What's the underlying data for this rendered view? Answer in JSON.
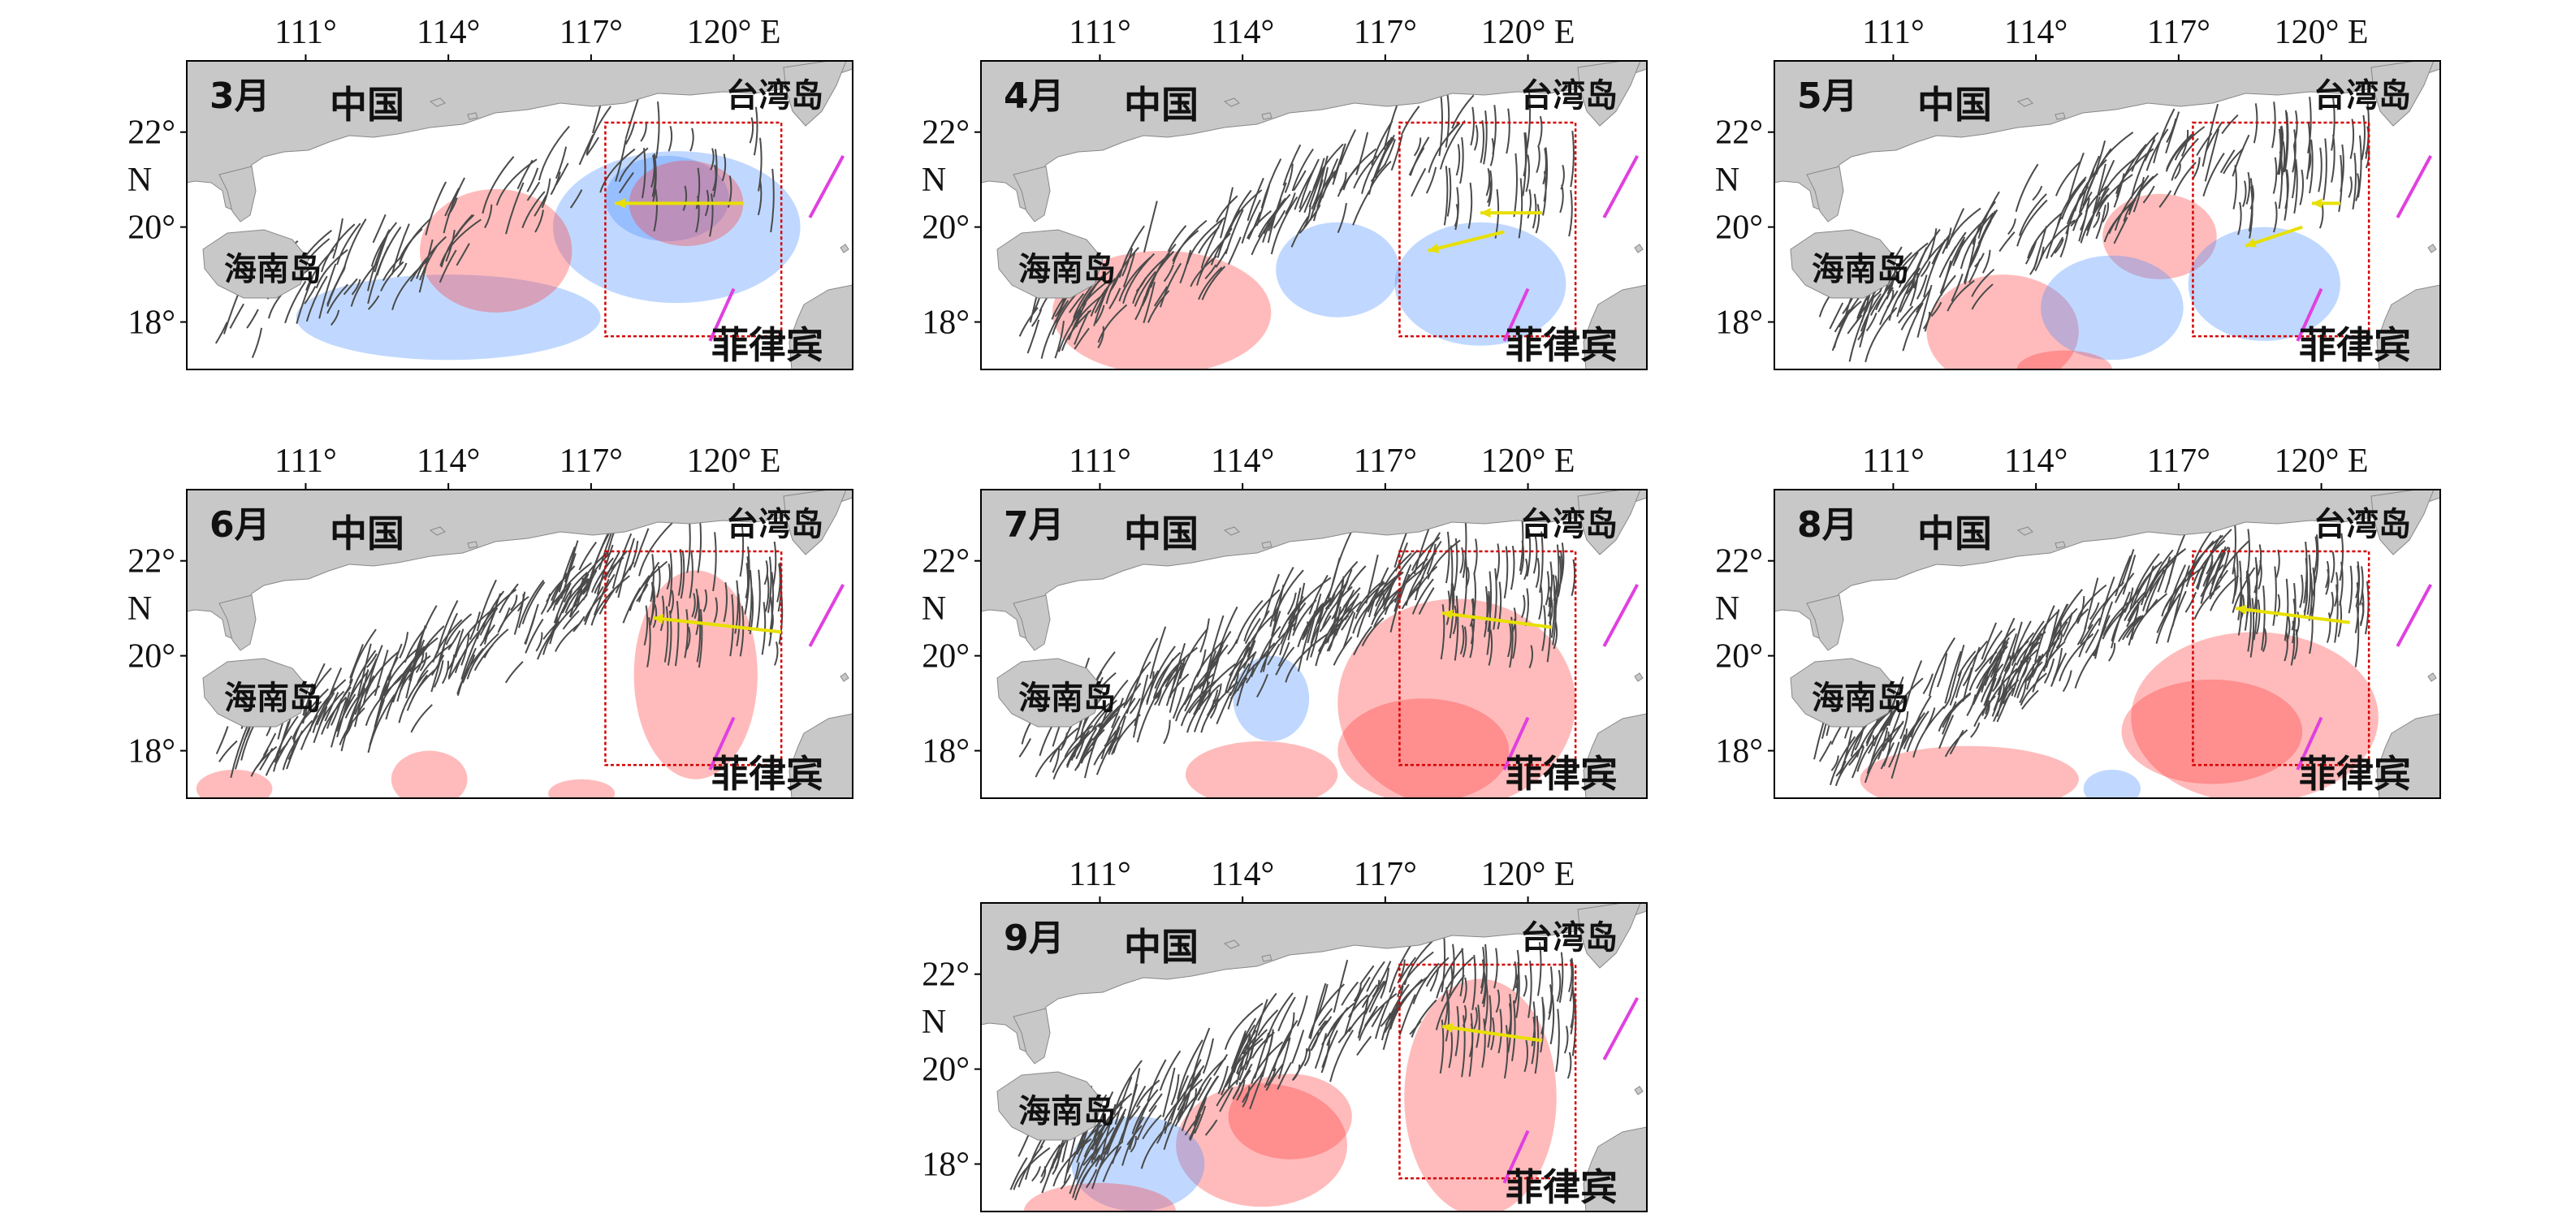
{
  "lon_ticks": [
    "111°",
    "114°",
    "117°",
    "120° E"
  ],
  "lat_ticks": [
    "22°",
    "20°",
    "18°"
  ],
  "lat_unit": "N",
  "place_names": {
    "china": "中国",
    "taiwan": "台湾岛",
    "hainan": "海南岛",
    "philippines": "菲律宾"
  },
  "colors": {
    "land": "#c8c8c8",
    "waves": "#4a4a4a",
    "positive_anomaly": "#ff3b3b",
    "negative_anomaly": "#4a90ff",
    "box": "#d40000",
    "arrow": "#e8e000",
    "magenta_line": "#e040e0"
  },
  "panels": [
    {
      "month": "3月",
      "wave_density": 0.25,
      "wave_east": true,
      "anomalies": [
        {
          "sign": "neg",
          "lon": 114.0,
          "lat": 18.1,
          "rx": 3.2,
          "ry": 0.9
        },
        {
          "sign": "neg",
          "lon": 118.8,
          "lat": 20.0,
          "rx": 2.6,
          "ry": 1.6
        },
        {
          "sign": "neg",
          "lon": 118.6,
          "lat": 20.6,
          "rx": 1.3,
          "ry": 0.9
        },
        {
          "sign": "pos",
          "lon": 115.0,
          "lat": 19.5,
          "rx": 1.6,
          "ry": 1.3
        },
        {
          "sign": "pos",
          "lon": 119.0,
          "lat": 20.5,
          "rx": 1.2,
          "ry": 0.9
        }
      ],
      "arrows": [
        {
          "from": [
            120.2,
            20.5
          ],
          "to": [
            117.5,
            20.5
          ]
        }
      ]
    },
    {
      "month": "4月",
      "wave_density": 0.55,
      "wave_east": true,
      "anomalies": [
        {
          "sign": "pos",
          "lon": 112.3,
          "lat": 18.2,
          "rx": 2.3,
          "ry": 1.3
        },
        {
          "sign": "neg",
          "lon": 116.0,
          "lat": 19.1,
          "rx": 1.3,
          "ry": 1.0
        },
        {
          "sign": "neg",
          "lon": 119.0,
          "lat": 18.8,
          "rx": 1.8,
          "ry": 1.3
        }
      ],
      "arrows": [
        {
          "from": [
            120.3,
            20.3
          ],
          "to": [
            119.0,
            20.3
          ]
        },
        {
          "from": [
            119.5,
            19.9
          ],
          "to": [
            117.9,
            19.5
          ]
        }
      ]
    },
    {
      "month": "5月",
      "wave_density": 0.7,
      "wave_east": true,
      "anomalies": [
        {
          "sign": "pos",
          "lon": 113.3,
          "lat": 17.8,
          "rx": 1.6,
          "ry": 1.2
        },
        {
          "sign": "pos",
          "lon": 116.6,
          "lat": 19.8,
          "rx": 1.2,
          "ry": 0.9
        },
        {
          "sign": "neg",
          "lon": 115.6,
          "lat": 18.3,
          "rx": 1.5,
          "ry": 1.1
        },
        {
          "sign": "neg",
          "lon": 118.8,
          "lat": 18.8,
          "rx": 1.6,
          "ry": 1.2
        },
        {
          "sign": "pos",
          "lon": 114.6,
          "lat": 17.0,
          "rx": 1.0,
          "ry": 0.4
        }
      ],
      "arrows": [
        {
          "from": [
            120.4,
            20.5
          ],
          "to": [
            119.8,
            20.5
          ]
        },
        {
          "from": [
            119.6,
            20.0
          ],
          "to": [
            118.4,
            19.6
          ]
        }
      ]
    },
    {
      "month": "6月",
      "wave_density": 0.85,
      "wave_east": true,
      "anomalies": [
        {
          "sign": "pos",
          "lon": 119.2,
          "lat": 19.6,
          "rx": 1.3,
          "ry": 2.2
        },
        {
          "sign": "pos",
          "lon": 113.6,
          "lat": 17.4,
          "rx": 0.8,
          "ry": 0.6
        },
        {
          "sign": "pos",
          "lon": 109.5,
          "lat": 17.2,
          "rx": 0.8,
          "ry": 0.4
        },
        {
          "sign": "pos",
          "lon": 116.8,
          "lat": 17.1,
          "rx": 0.7,
          "ry": 0.3
        }
      ],
      "arrows": [
        {
          "from": [
            121.0,
            20.5
          ],
          "to": [
            118.3,
            20.8
          ]
        }
      ]
    },
    {
      "month": "7月",
      "wave_density": 1.0,
      "wave_east": true,
      "anomalies": [
        {
          "sign": "pos",
          "lon": 118.5,
          "lat": 19.0,
          "rx": 2.5,
          "ry": 2.2
        },
        {
          "sign": "pos",
          "lon": 117.8,
          "lat": 18.0,
          "rx": 1.8,
          "ry": 1.1
        },
        {
          "sign": "neg",
          "lon": 114.6,
          "lat": 19.1,
          "rx": 0.8,
          "ry": 0.9
        },
        {
          "sign": "pos",
          "lon": 114.4,
          "lat": 17.5,
          "rx": 1.6,
          "ry": 0.7
        }
      ],
      "arrows": [
        {
          "from": [
            120.5,
            20.6
          ],
          "to": [
            118.2,
            20.9
          ]
        }
      ]
    },
    {
      "month": "8月",
      "wave_density": 1.0,
      "wave_east": true,
      "anomalies": [
        {
          "sign": "pos",
          "lon": 118.6,
          "lat": 18.7,
          "rx": 2.6,
          "ry": 1.8
        },
        {
          "sign": "pos",
          "lon": 117.7,
          "lat": 18.4,
          "rx": 1.9,
          "ry": 1.1
        },
        {
          "sign": "pos",
          "lon": 112.6,
          "lat": 17.4,
          "rx": 2.3,
          "ry": 0.7
        },
        {
          "sign": "neg",
          "lon": 115.6,
          "lat": 17.2,
          "rx": 0.6,
          "ry": 0.4
        }
      ],
      "arrows": [
        {
          "from": [
            120.6,
            20.7
          ],
          "to": [
            118.2,
            21.0
          ]
        }
      ]
    },
    {
      "month": "9月",
      "wave_density": 0.95,
      "wave_east": true,
      "anomalies": [
        {
          "sign": "pos",
          "lon": 119.0,
          "lat": 19.4,
          "rx": 1.6,
          "ry": 2.5
        },
        {
          "sign": "pos",
          "lon": 114.4,
          "lat": 18.4,
          "rx": 1.8,
          "ry": 1.3
        },
        {
          "sign": "pos",
          "lon": 115.0,
          "lat": 19.0,
          "rx": 1.3,
          "ry": 0.9
        },
        {
          "sign": "neg",
          "lon": 111.8,
          "lat": 18.0,
          "rx": 1.4,
          "ry": 1.0
        },
        {
          "sign": "pos",
          "lon": 111.0,
          "lat": 17.0,
          "rx": 1.6,
          "ry": 0.6
        }
      ],
      "arrows": [
        {
          "from": [
            120.3,
            20.6
          ],
          "to": [
            118.2,
            20.9
          ]
        }
      ]
    }
  ]
}
